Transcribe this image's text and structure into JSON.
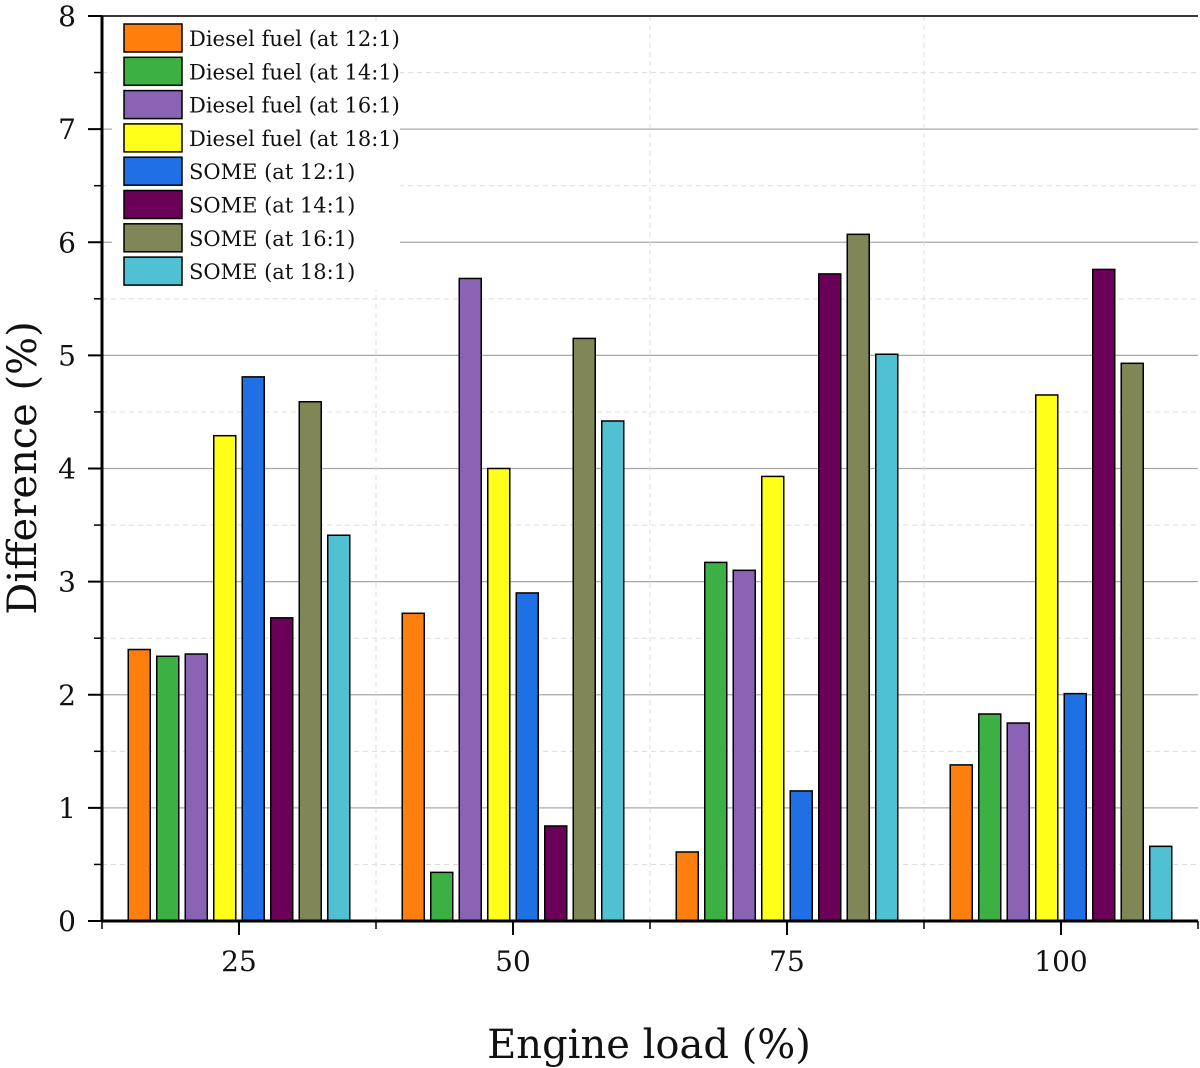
{
  "chart_data": {
    "type": "bar",
    "xlabel": "Engine load (%)",
    "ylabel": "Difference (%)",
    "categories": [
      "25",
      "50",
      "75",
      "100"
    ],
    "ylim": [
      0,
      8
    ],
    "yticks": [
      0,
      1,
      2,
      3,
      4,
      5,
      6,
      7,
      8
    ],
    "grid": true,
    "legend_position": "top-left",
    "series": [
      {
        "name": "Diesel fuel (at 12:1)",
        "color": "#ff7f0e",
        "values": [
          2.4,
          2.72,
          0.61,
          1.38
        ]
      },
      {
        "name": "Diesel fuel (at 14:1)",
        "color": "#3cb043",
        "values": [
          2.34,
          0.43,
          3.17,
          1.83
        ]
      },
      {
        "name": "Diesel fuel (at 16:1)",
        "color": "#8a63b5",
        "values": [
          2.36,
          5.68,
          3.1,
          1.75
        ]
      },
      {
        "name": "Diesel fuel (at 18:1)",
        "color": "#ffff1a",
        "values": [
          4.29,
          4.0,
          3.93,
          4.65
        ]
      },
      {
        "name": "SOME (at 12:1)",
        "color": "#1f6fe5",
        "values": [
          4.81,
          2.9,
          1.15,
          2.01
        ]
      },
      {
        "name": "SOME (at 14:1)",
        "color": "#6a0057",
        "values": [
          2.68,
          0.84,
          5.72,
          5.76
        ]
      },
      {
        "name": "SOME (at 16:1)",
        "color": "#808656",
        "values": [
          4.59,
          5.15,
          6.07,
          4.93
        ]
      },
      {
        "name": "SOME (at 18:1)",
        "color": "#4fc1d3",
        "values": [
          3.41,
          4.42,
          5.01,
          0.66
        ]
      }
    ]
  }
}
